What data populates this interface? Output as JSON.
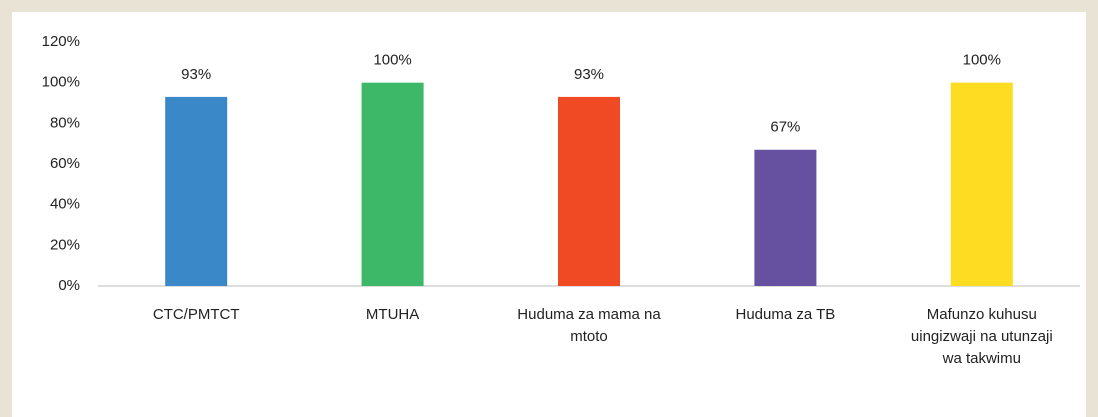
{
  "chart_data": {
    "type": "bar",
    "categories": [
      "CTC/PMTCT",
      "MTUHA",
      "Huduma za mama na mtoto",
      "Huduma za TB",
      "Mafunzo kuhusu uingizwaji na utunzaji wa takwimu"
    ],
    "values": [
      93,
      100,
      93,
      67,
      100
    ],
    "value_labels": [
      "93%",
      "100%",
      "93%",
      "67%",
      "100%"
    ],
    "colors": [
      "#3a88c8",
      "#3cb868",
      "#f04a24",
      "#6551a0",
      "#fddc22"
    ],
    "ylim": [
      0,
      120
    ],
    "yticks": [
      {
        "value": 0,
        "label": "0%"
      },
      {
        "value": 20,
        "label": "20%"
      },
      {
        "value": 40,
        "label": "40%"
      },
      {
        "value": 60,
        "label": "60%"
      },
      {
        "value": 80,
        "label": "80%"
      },
      {
        "value": 100,
        "label": "100%"
      },
      {
        "value": 120,
        "label": "120%"
      }
    ],
    "grid": false
  }
}
